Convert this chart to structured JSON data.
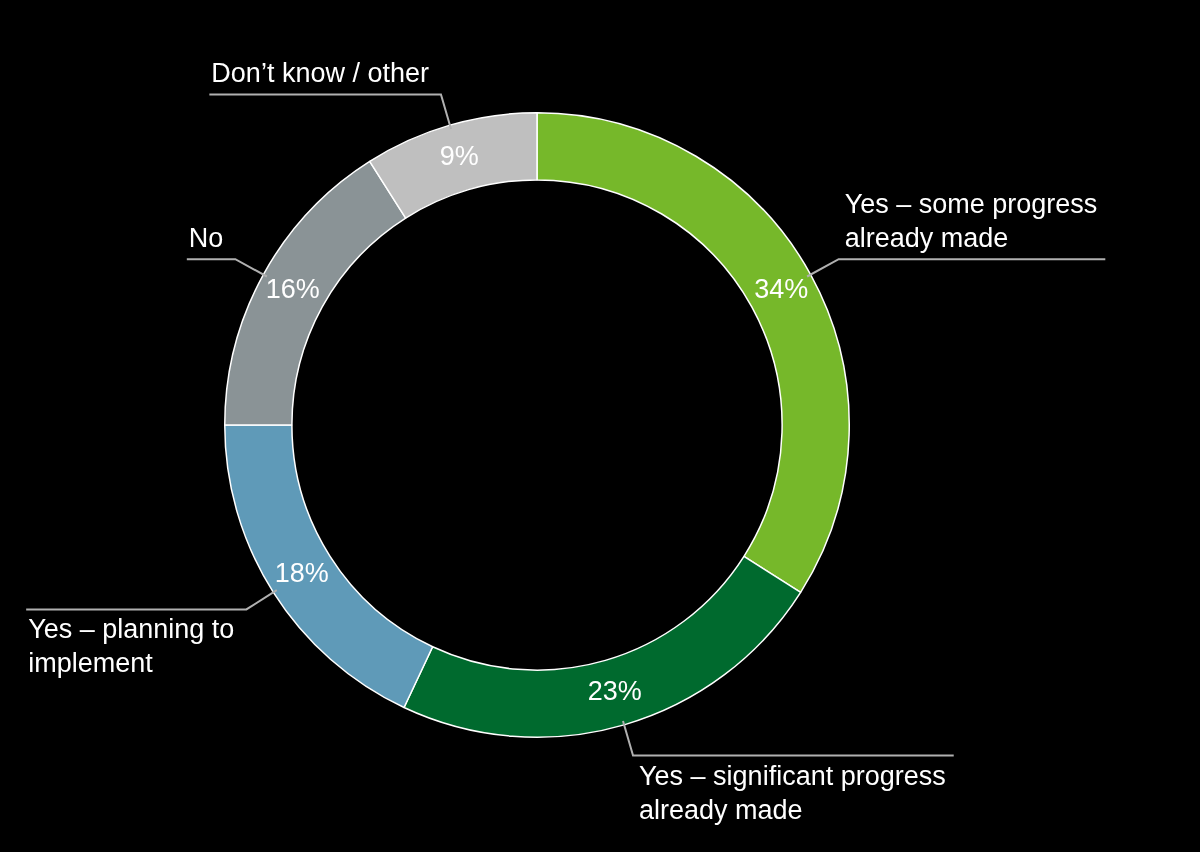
{
  "chart_data": {
    "type": "donut",
    "categories": [
      "Yes – some progress already made",
      "Yes – significant progress already made",
      "Yes – planning to implement",
      "No",
      "Don’t know / other"
    ],
    "values": [
      34,
      23,
      18,
      16,
      9
    ],
    "colors": [
      "#76b82a",
      "#006a2e",
      "#5f9ab8",
      "#8a9396",
      "#bfbfbf"
    ],
    "value_labels": [
      "34%",
      "23%",
      "18%",
      "16%",
      "9%"
    ],
    "legend": false
  }
}
